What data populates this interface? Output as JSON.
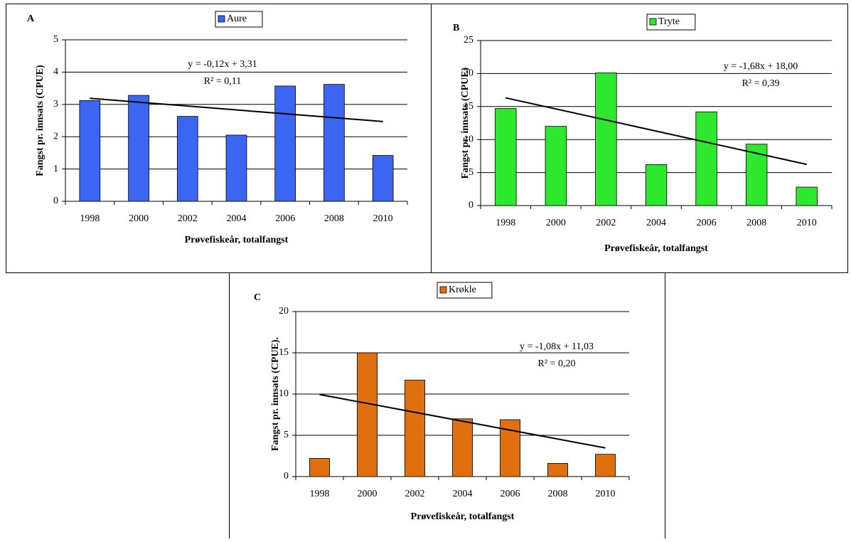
{
  "chart_data": [
    {
      "type": "bar",
      "panel": "A",
      "categories": [
        "1998",
        "2000",
        "2002",
        "2004",
        "2006",
        "2008",
        "2010"
      ],
      "series": [
        {
          "name": "Aure",
          "color": "#3a66f2",
          "values": [
            3.12,
            3.28,
            2.63,
            2.05,
            3.57,
            3.62,
            1.42
          ]
        }
      ],
      "ylim": [
        0,
        5
      ],
      "yticks": [
        0,
        1,
        2,
        3,
        4,
        5
      ],
      "grid": true,
      "ylabel": "Fangst pr. innsats (CPUE)",
      "xlabel": "Prøvefiskeår, totalfangst",
      "trendline": {
        "slope": -0.12,
        "intercept": 3.31,
        "equation": "y = -0,12x + 3,31",
        "r2": "R² = 0,11"
      }
    },
    {
      "type": "bar",
      "panel": "B",
      "categories": [
        "1998",
        "2000",
        "2002",
        "2004",
        "2006",
        "2008",
        "2010"
      ],
      "series": [
        {
          "name": "Tryte",
          "color": "#2ee82e",
          "values": [
            14.7,
            12.0,
            20.1,
            6.2,
            14.2,
            9.3,
            2.8
          ]
        }
      ],
      "ylim": [
        0,
        25
      ],
      "yticks": [
        0,
        5,
        10,
        15,
        20,
        25
      ],
      "grid": true,
      "ylabel": "Fangst pr. innsats (CPUE)",
      "xlabel": "Prøvefiskeår, totalfangst",
      "trendline": {
        "slope": -1.68,
        "intercept": 18.0,
        "equation": "y = -1,68x + 18,00",
        "r2": "R² = 0,39"
      }
    },
    {
      "type": "bar",
      "panel": "C",
      "categories": [
        "1998",
        "2000",
        "2002",
        "2004",
        "2006",
        "2008",
        "2010"
      ],
      "series": [
        {
          "name": "Krøkle",
          "color": "#e0700f",
          "values": [
            2.2,
            15.0,
            11.7,
            7.0,
            6.9,
            1.6,
            2.7
          ]
        }
      ],
      "ylim": [
        0,
        20
      ],
      "yticks": [
        0,
        5,
        10,
        15,
        20
      ],
      "grid": true,
      "ylabel": "Fangst pr. innsats (CPUE).",
      "xlabel": "Prøvefiskeår, totalfangst",
      "trendline": {
        "slope": -1.08,
        "intercept": 11.03,
        "equation": "y = -1,08x + 11,03",
        "r2": "R² = 0,20"
      }
    }
  ]
}
